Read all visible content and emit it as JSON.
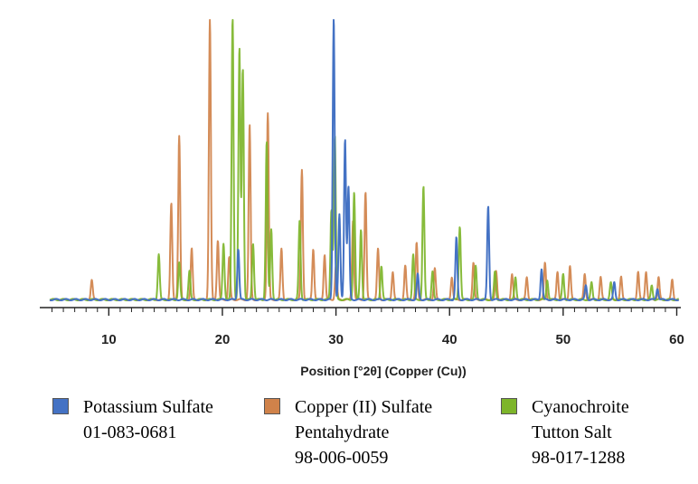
{
  "chart_data": {
    "type": "line",
    "title": "",
    "xlabel": "Position [°2θ] (Copper (Cu))",
    "ylabel": "",
    "xlim": [
      4.8,
      60.2
    ],
    "ylim": [
      0,
      100
    ],
    "x_ticks": [
      10,
      20,
      30,
      40,
      50,
      60
    ],
    "grid": false,
    "legend_position": "bottom",
    "series": [
      {
        "name": "Potassium Sulfate",
        "ref_code": "01-083-0681",
        "color": "#4472C4",
        "peaks": [
          [
            21.4,
            18
          ],
          [
            29.8,
            100
          ],
          [
            30.3,
            30
          ],
          [
            30.8,
            57
          ],
          [
            31.1,
            40
          ],
          [
            37.2,
            9
          ],
          [
            40.6,
            22
          ],
          [
            43.4,
            33
          ],
          [
            48.1,
            11
          ],
          [
            52.0,
            5
          ],
          [
            54.5,
            6
          ],
          [
            58.3,
            4
          ]
        ]
      },
      {
        "name": "Copper (II) Sulfate Pentahydrate",
        "ref_code": "98-006-0059",
        "color": "#D0824A",
        "peaks": [
          [
            8.5,
            7
          ],
          [
            15.5,
            34
          ],
          [
            16.2,
            58
          ],
          [
            17.3,
            18
          ],
          [
            18.9,
            100
          ],
          [
            19.6,
            21
          ],
          [
            20.6,
            15
          ],
          [
            22.4,
            62
          ],
          [
            24.0,
            66
          ],
          [
            25.2,
            18
          ],
          [
            27.0,
            46
          ],
          [
            28.0,
            18
          ],
          [
            29.0,
            16
          ],
          [
            30.0,
            12
          ],
          [
            31.5,
            28
          ],
          [
            32.6,
            38
          ],
          [
            33.7,
            18
          ],
          [
            35.0,
            10
          ],
          [
            36.1,
            12
          ],
          [
            37.1,
            20
          ],
          [
            38.7,
            11
          ],
          [
            40.2,
            8
          ],
          [
            42.1,
            13
          ],
          [
            44.1,
            10
          ],
          [
            45.5,
            9
          ],
          [
            46.8,
            8
          ],
          [
            48.4,
            13
          ],
          [
            49.5,
            10
          ],
          [
            50.6,
            12
          ],
          [
            51.9,
            9
          ],
          [
            53.3,
            8
          ],
          [
            55.1,
            8
          ],
          [
            56.6,
            10
          ],
          [
            57.3,
            10
          ],
          [
            58.4,
            8
          ],
          [
            59.6,
            7
          ]
        ]
      },
      {
        "name": "Cyanochroite Tutton Salt",
        "ref_code": "98-017-1288",
        "color": "#7DB52A",
        "peaks": [
          [
            14.4,
            16
          ],
          [
            16.2,
            13
          ],
          [
            17.1,
            10
          ],
          [
            20.1,
            20
          ],
          [
            20.9,
            100
          ],
          [
            21.5,
            89
          ],
          [
            21.8,
            82
          ],
          [
            22.7,
            20
          ],
          [
            23.9,
            56
          ],
          [
            24.3,
            25
          ],
          [
            26.8,
            28
          ],
          [
            29.6,
            32
          ],
          [
            29.9,
            58
          ],
          [
            31.6,
            38
          ],
          [
            32.2,
            25
          ],
          [
            34.0,
            12
          ],
          [
            36.8,
            16
          ],
          [
            37.7,
            40
          ],
          [
            38.5,
            10
          ],
          [
            40.9,
            26
          ],
          [
            42.3,
            12
          ],
          [
            44.0,
            10
          ],
          [
            45.8,
            8
          ],
          [
            48.6,
            7
          ],
          [
            50.0,
            9
          ],
          [
            52.5,
            6
          ],
          [
            54.2,
            6
          ],
          [
            57.8,
            5
          ]
        ]
      }
    ]
  },
  "legend": [
    {
      "lines": [
        "Potassium Sulfate",
        "01-083-0681"
      ],
      "color": "#4472C4"
    },
    {
      "lines": [
        "Copper (II) Sulfate",
        "Pentahydrate",
        "98-006-0059"
      ],
      "color": "#D0824A"
    },
    {
      "lines": [
        "Cyanochroite",
        "Tutton Salt",
        "98-017-1288"
      ],
      "color": "#7DB52A"
    }
  ]
}
